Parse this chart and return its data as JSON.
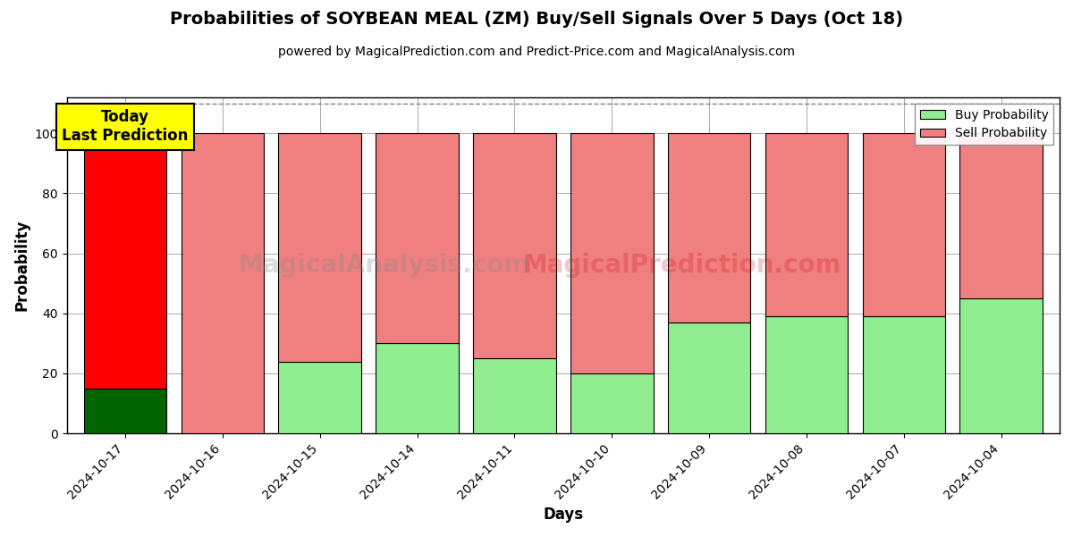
{
  "title": "Probabilities of SOYBEAN MEAL (ZM) Buy/Sell Signals Over 5 Days (Oct 18)",
  "subtitle": "powered by MagicalPrediction.com and Predict-Price.com and MagicalAnalysis.com",
  "xlabel": "Days",
  "ylabel": "Probability",
  "categories": [
    "2024-10-17",
    "2024-10-16",
    "2024-10-15",
    "2024-10-14",
    "2024-10-11",
    "2024-10-10",
    "2024-10-09",
    "2024-10-08",
    "2024-10-07",
    "2024-10-04"
  ],
  "buy_values": [
    15,
    0,
    24,
    30,
    25,
    20,
    37,
    39,
    39,
    45
  ],
  "sell_values": [
    85,
    100,
    76,
    70,
    75,
    80,
    63,
    61,
    61,
    55
  ],
  "today_index": 0,
  "today_buy_color": "#006400",
  "today_sell_color": "#FF0000",
  "buy_color": "#90EE90",
  "sell_color": "#F08080",
  "today_label_bg": "#FFFF00",
  "today_label_text": "Today\nLast Prediction",
  "legend_buy": "Buy Probability",
  "legend_sell": "Sell Probability",
  "ylim": [
    0,
    112
  ],
  "yticks": [
    0,
    20,
    40,
    60,
    80,
    100
  ],
  "dashed_line_y": 110,
  "watermark_text1": "MagicalAnalysis.com",
  "watermark_text2": "MagicalPrediction.com",
  "bar_width": 0.85,
  "edgecolor": "#000000",
  "background_color": "#FFFFFF",
  "grid_color": "#AAAAAA"
}
